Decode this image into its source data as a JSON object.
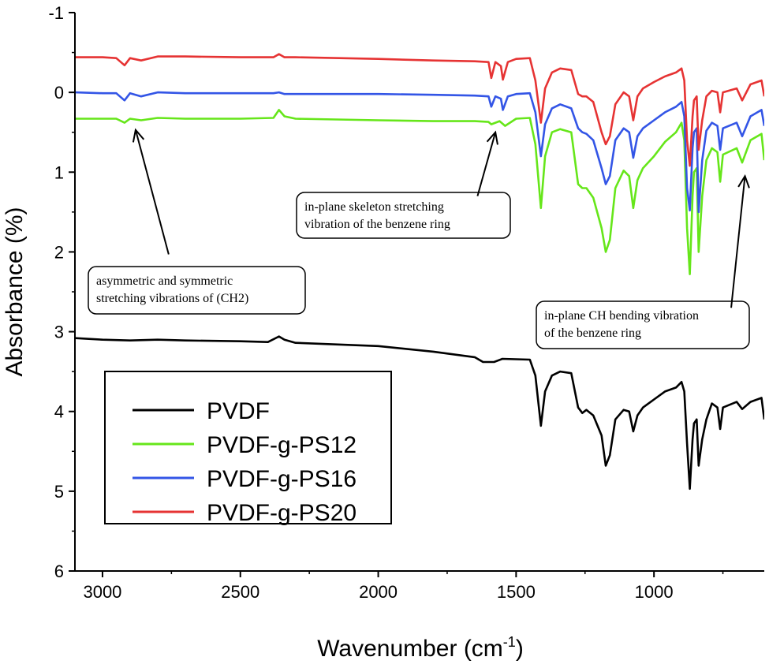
{
  "chart_data": {
    "type": "line",
    "title": "",
    "xlabel": "Wavenumber (cm",
    "xlabel_sup": "-1",
    "xlabel_close": ")",
    "ylabel": "Absorbance (%)",
    "xlim": [
      3100,
      600
    ],
    "ylim": [
      -1,
      6
    ],
    "y_inverted": true,
    "xticks": [
      3000,
      2500,
      2000,
      1500,
      1000
    ],
    "yticks": [
      -1,
      0,
      1,
      2,
      3,
      4,
      5,
      6
    ],
    "grid": false,
    "legend_position": "bottom-left",
    "series": [
      {
        "name": "PVDF",
        "color": "#000000",
        "points": [
          [
            3100,
            3.08
          ],
          [
            3000,
            3.1
          ],
          [
            2900,
            3.11
          ],
          [
            2800,
            3.1
          ],
          [
            2700,
            3.11
          ],
          [
            2500,
            3.12
          ],
          [
            2400,
            3.13
          ],
          [
            2360,
            3.06
          ],
          [
            2340,
            3.1
          ],
          [
            2300,
            3.14
          ],
          [
            2000,
            3.18
          ],
          [
            1800,
            3.25
          ],
          [
            1650,
            3.32
          ],
          [
            1620,
            3.38
          ],
          [
            1580,
            3.38
          ],
          [
            1550,
            3.34
          ],
          [
            1450,
            3.35
          ],
          [
            1430,
            3.55
          ],
          [
            1410,
            4.18
          ],
          [
            1395,
            3.75
          ],
          [
            1370,
            3.55
          ],
          [
            1340,
            3.5
          ],
          [
            1300,
            3.52
          ],
          [
            1275,
            3.95
          ],
          [
            1260,
            4.02
          ],
          [
            1245,
            3.98
          ],
          [
            1220,
            4.05
          ],
          [
            1190,
            4.3
          ],
          [
            1175,
            4.68
          ],
          [
            1160,
            4.55
          ],
          [
            1140,
            4.1
          ],
          [
            1110,
            3.98
          ],
          [
            1090,
            4.0
          ],
          [
            1075,
            4.25
          ],
          [
            1060,
            4.05
          ],
          [
            1040,
            3.95
          ],
          [
            1000,
            3.85
          ],
          [
            960,
            3.75
          ],
          [
            920,
            3.7
          ],
          [
            900,
            3.63
          ],
          [
            890,
            3.75
          ],
          [
            880,
            4.4
          ],
          [
            870,
            4.97
          ],
          [
            860,
            4.35
          ],
          [
            855,
            4.15
          ],
          [
            845,
            4.1
          ],
          [
            838,
            4.68
          ],
          [
            825,
            4.35
          ],
          [
            810,
            4.1
          ],
          [
            790,
            3.9
          ],
          [
            770,
            3.95
          ],
          [
            760,
            4.22
          ],
          [
            750,
            3.95
          ],
          [
            700,
            3.88
          ],
          [
            680,
            3.97
          ],
          [
            650,
            3.88
          ],
          [
            610,
            3.83
          ],
          [
            600,
            4.1
          ]
        ]
      },
      {
        "name": "PVDF-g-PS12",
        "color": "#66e61a",
        "points": [
          [
            3100,
            0.33
          ],
          [
            3000,
            0.33
          ],
          [
            2950,
            0.33
          ],
          [
            2920,
            0.38
          ],
          [
            2900,
            0.33
          ],
          [
            2860,
            0.35
          ],
          [
            2800,
            0.32
          ],
          [
            2700,
            0.33
          ],
          [
            2500,
            0.33
          ],
          [
            2380,
            0.32
          ],
          [
            2360,
            0.22
          ],
          [
            2340,
            0.3
          ],
          [
            2300,
            0.33
          ],
          [
            2000,
            0.35
          ],
          [
            1800,
            0.36
          ],
          [
            1650,
            0.36
          ],
          [
            1600,
            0.37
          ],
          [
            1590,
            0.4
          ],
          [
            1560,
            0.36
          ],
          [
            1540,
            0.42
          ],
          [
            1500,
            0.33
          ],
          [
            1450,
            0.32
          ],
          [
            1430,
            0.65
          ],
          [
            1410,
            1.45
          ],
          [
            1395,
            0.8
          ],
          [
            1370,
            0.5
          ],
          [
            1340,
            0.46
          ],
          [
            1300,
            0.5
          ],
          [
            1275,
            1.15
          ],
          [
            1260,
            1.2
          ],
          [
            1245,
            1.2
          ],
          [
            1220,
            1.32
          ],
          [
            1190,
            1.7
          ],
          [
            1175,
            2.0
          ],
          [
            1160,
            1.85
          ],
          [
            1140,
            1.2
          ],
          [
            1110,
            0.98
          ],
          [
            1090,
            1.05
          ],
          [
            1075,
            1.45
          ],
          [
            1060,
            1.1
          ],
          [
            1040,
            0.95
          ],
          [
            1000,
            0.8
          ],
          [
            960,
            0.62
          ],
          [
            920,
            0.5
          ],
          [
            900,
            0.38
          ],
          [
            890,
            0.6
          ],
          [
            880,
            1.7
          ],
          [
            870,
            2.28
          ],
          [
            860,
            1.3
          ],
          [
            855,
            1.0
          ],
          [
            845,
            0.95
          ],
          [
            838,
            2.0
          ],
          [
            825,
            1.3
          ],
          [
            810,
            0.85
          ],
          [
            790,
            0.7
          ],
          [
            770,
            0.75
          ],
          [
            760,
            1.12
          ],
          [
            750,
            0.78
          ],
          [
            700,
            0.7
          ],
          [
            680,
            0.88
          ],
          [
            650,
            0.6
          ],
          [
            610,
            0.52
          ],
          [
            600,
            0.85
          ]
        ]
      },
      {
        "name": "PVDF-g-PS16",
        "color": "#3355e6",
        "points": [
          [
            3100,
            0.0
          ],
          [
            3000,
            0.01
          ],
          [
            2950,
            0.01
          ],
          [
            2920,
            0.1
          ],
          [
            2900,
            0.01
          ],
          [
            2860,
            0.05
          ],
          [
            2800,
            0.0
          ],
          [
            2700,
            0.01
          ],
          [
            2500,
            0.01
          ],
          [
            2380,
            0.01
          ],
          [
            2360,
            0.0
          ],
          [
            2340,
            0.02
          ],
          [
            2300,
            0.02
          ],
          [
            2000,
            0.02
          ],
          [
            1800,
            0.03
          ],
          [
            1650,
            0.04
          ],
          [
            1600,
            0.05
          ],
          [
            1590,
            0.18
          ],
          [
            1575,
            0.05
          ],
          [
            1555,
            0.08
          ],
          [
            1548,
            0.22
          ],
          [
            1530,
            0.05
          ],
          [
            1500,
            0.02
          ],
          [
            1450,
            0.01
          ],
          [
            1430,
            0.25
          ],
          [
            1410,
            0.8
          ],
          [
            1395,
            0.4
          ],
          [
            1370,
            0.2
          ],
          [
            1340,
            0.15
          ],
          [
            1300,
            0.2
          ],
          [
            1275,
            0.45
          ],
          [
            1260,
            0.5
          ],
          [
            1245,
            0.52
          ],
          [
            1220,
            0.6
          ],
          [
            1190,
            0.95
          ],
          [
            1175,
            1.15
          ],
          [
            1160,
            1.05
          ],
          [
            1140,
            0.6
          ],
          [
            1110,
            0.45
          ],
          [
            1090,
            0.5
          ],
          [
            1075,
            0.82
          ],
          [
            1060,
            0.55
          ],
          [
            1040,
            0.45
          ],
          [
            1000,
            0.35
          ],
          [
            960,
            0.25
          ],
          [
            920,
            0.18
          ],
          [
            900,
            0.12
          ],
          [
            890,
            0.3
          ],
          [
            880,
            1.2
          ],
          [
            870,
            1.48
          ],
          [
            860,
            0.7
          ],
          [
            855,
            0.5
          ],
          [
            845,
            0.45
          ],
          [
            838,
            1.5
          ],
          [
            825,
            0.85
          ],
          [
            810,
            0.48
          ],
          [
            790,
            0.38
          ],
          [
            770,
            0.42
          ],
          [
            760,
            0.72
          ],
          [
            750,
            0.45
          ],
          [
            700,
            0.38
          ],
          [
            680,
            0.55
          ],
          [
            650,
            0.3
          ],
          [
            610,
            0.22
          ],
          [
            600,
            0.42
          ]
        ]
      },
      {
        "name": "PVDF-g-PS20",
        "color": "#e63333",
        "points": [
          [
            3100,
            -0.44
          ],
          [
            3000,
            -0.44
          ],
          [
            2950,
            -0.43
          ],
          [
            2920,
            -0.34
          ],
          [
            2900,
            -0.43
          ],
          [
            2860,
            -0.4
          ],
          [
            2800,
            -0.45
          ],
          [
            2700,
            -0.45
          ],
          [
            2500,
            -0.44
          ],
          [
            2380,
            -0.44
          ],
          [
            2360,
            -0.48
          ],
          [
            2340,
            -0.44
          ],
          [
            2300,
            -0.44
          ],
          [
            2000,
            -0.42
          ],
          [
            1800,
            -0.4
          ],
          [
            1650,
            -0.39
          ],
          [
            1600,
            -0.38
          ],
          [
            1590,
            -0.18
          ],
          [
            1575,
            -0.38
          ],
          [
            1555,
            -0.33
          ],
          [
            1548,
            -0.16
          ],
          [
            1530,
            -0.38
          ],
          [
            1500,
            -0.42
          ],
          [
            1450,
            -0.43
          ],
          [
            1430,
            -0.15
          ],
          [
            1410,
            0.38
          ],
          [
            1395,
            -0.05
          ],
          [
            1370,
            -0.25
          ],
          [
            1340,
            -0.3
          ],
          [
            1300,
            -0.28
          ],
          [
            1275,
            0.02
          ],
          [
            1260,
            0.05
          ],
          [
            1245,
            0.05
          ],
          [
            1220,
            0.12
          ],
          [
            1190,
            0.5
          ],
          [
            1175,
            0.65
          ],
          [
            1160,
            0.55
          ],
          [
            1140,
            0.15
          ],
          [
            1110,
            0.0
          ],
          [
            1090,
            0.05
          ],
          [
            1075,
            0.35
          ],
          [
            1060,
            0.05
          ],
          [
            1040,
            -0.05
          ],
          [
            1000,
            -0.13
          ],
          [
            960,
            -0.2
          ],
          [
            920,
            -0.25
          ],
          [
            900,
            -0.3
          ],
          [
            890,
            -0.15
          ],
          [
            880,
            0.6
          ],
          [
            870,
            0.92
          ],
          [
            860,
            0.3
          ],
          [
            855,
            0.1
          ],
          [
            845,
            0.05
          ],
          [
            838,
            0.72
          ],
          [
            825,
            0.35
          ],
          [
            810,
            0.05
          ],
          [
            790,
            -0.02
          ],
          [
            770,
            0.0
          ],
          [
            760,
            0.25
          ],
          [
            750,
            0.0
          ],
          [
            700,
            -0.05
          ],
          [
            680,
            0.1
          ],
          [
            650,
            -0.1
          ],
          [
            610,
            -0.15
          ],
          [
            600,
            0.05
          ]
        ]
      }
    ],
    "annotations": [
      {
        "lines": [
          "asymmetric and symmetric",
          "stretching vibrations of (CH2)"
        ],
        "arrow_from": [
          2760,
          2.03
        ],
        "arrow_to": [
          2880,
          0.47
        ]
      },
      {
        "lines": [
          "in-plane skeleton stretching",
          "vibration of the benzene ring"
        ],
        "arrow_from": [
          1640,
          1.3
        ],
        "arrow_to": [
          1575,
          0.5
        ]
      },
      {
        "lines": [
          "in-plane CH bending vibration",
          "of the benzene ring"
        ],
        "arrow_from": [
          720,
          2.7
        ],
        "arrow_to": [
          670,
          1.05
        ]
      }
    ]
  }
}
